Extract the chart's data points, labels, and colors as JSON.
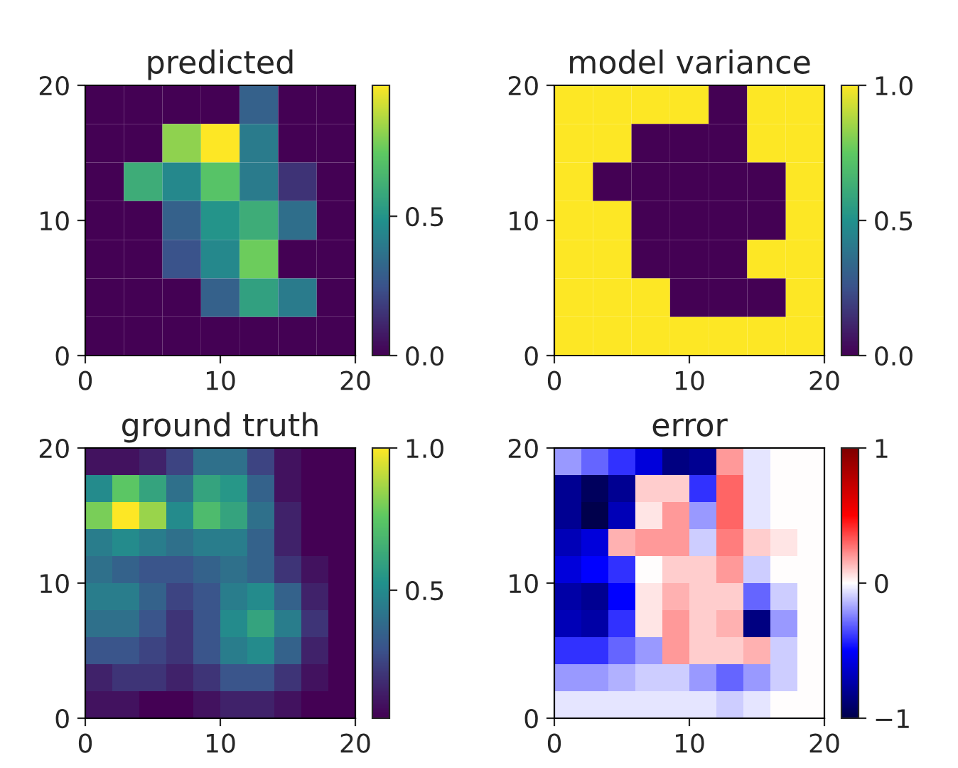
{
  "chart_data": [
    {
      "type": "heatmap",
      "title": "predicted",
      "xlim": [
        0,
        20
      ],
      "ylim": [
        0,
        20
      ],
      "xticks": [
        0,
        10,
        20
      ],
      "yticks": [
        0,
        10,
        20
      ],
      "clim": [
        0,
        0.97
      ],
      "cticks": [
        {
          "value": 0,
          "label": "0.0"
        },
        0.5
      ],
      "colors": [
        "#440154",
        "#3b528b",
        "#21918c",
        "#5ec962",
        "#fde725"
      ],
      "cells": [
        [
          0,
          0,
          0,
          0,
          0.3,
          0,
          0
        ],
        [
          0,
          0,
          0.8,
          0.97,
          0.4,
          0,
          0
        ],
        [
          0,
          0.6,
          0.45,
          0.7,
          0.4,
          0.15,
          0
        ],
        [
          0,
          0,
          0.3,
          0.5,
          0.6,
          0.35,
          0
        ],
        [
          0,
          0,
          0.25,
          0.45,
          0.75,
          0,
          0
        ],
        [
          0,
          0,
          0,
          0.3,
          0.55,
          0.4,
          0
        ],
        [
          0,
          0,
          0,
          0,
          0,
          0,
          0
        ]
      ]
    },
    {
      "type": "heatmap",
      "title": "model variance",
      "xlim": [
        0,
        20
      ],
      "ylim": [
        0,
        20
      ],
      "xticks": [
        0,
        10,
        20
      ],
      "yticks": [
        0,
        10,
        20
      ],
      "clim": [
        0,
        1
      ],
      "cticks": [
        {
          "value": 0,
          "label": "0.0"
        },
        0.5,
        {
          "value": 1,
          "label": "1.0"
        }
      ],
      "colors": [
        "#440154",
        "#3b528b",
        "#21918c",
        "#5ec962",
        "#fde725"
      ],
      "cells": [
        [
          1,
          1,
          1,
          1,
          0,
          1,
          1
        ],
        [
          1,
          1,
          0,
          0,
          0,
          1,
          1
        ],
        [
          1,
          0,
          0,
          0,
          0,
          0,
          1
        ],
        [
          1,
          1,
          0,
          0,
          0,
          0,
          1
        ],
        [
          1,
          1,
          0,
          0,
          0,
          1,
          1
        ],
        [
          1,
          1,
          1,
          0,
          0,
          0,
          1
        ],
        [
          1,
          1,
          1,
          1,
          1,
          1,
          1
        ]
      ]
    },
    {
      "type": "heatmap",
      "title": "ground truth",
      "xlim": [
        0,
        20
      ],
      "ylim": [
        0,
        20
      ],
      "xticks": [
        0,
        10,
        20
      ],
      "yticks": [
        0,
        10,
        20
      ],
      "clim": [
        0.05,
        1
      ],
      "cticks": [
        0.5,
        {
          "value": 1,
          "label": "1.0"
        }
      ],
      "colors": [
        "#440154",
        "#3b528b",
        "#21918c",
        "#5ec962",
        "#fde725"
      ],
      "cells": [
        [
          0.1,
          0.1,
          0.15,
          0.25,
          0.4,
          0.4,
          0.25,
          0.1,
          0.05,
          0.05
        ],
        [
          0.5,
          0.75,
          0.6,
          0.4,
          0.6,
          0.55,
          0.35,
          0.1,
          0.05,
          0.05
        ],
        [
          0.8,
          1.0,
          0.85,
          0.5,
          0.7,
          0.6,
          0.4,
          0.15,
          0.05,
          0.05
        ],
        [
          0.45,
          0.5,
          0.45,
          0.4,
          0.45,
          0.45,
          0.35,
          0.15,
          0.05,
          0.05
        ],
        [
          0.4,
          0.35,
          0.3,
          0.3,
          0.35,
          0.4,
          0.35,
          0.2,
          0.1,
          0.05
        ],
        [
          0.45,
          0.45,
          0.35,
          0.25,
          0.3,
          0.45,
          0.5,
          0.35,
          0.15,
          0.05
        ],
        [
          0.4,
          0.4,
          0.3,
          0.2,
          0.3,
          0.5,
          0.6,
          0.45,
          0.2,
          0.05
        ],
        [
          0.3,
          0.3,
          0.25,
          0.2,
          0.3,
          0.45,
          0.5,
          0.35,
          0.15,
          0.05
        ],
        [
          0.15,
          0.2,
          0.2,
          0.15,
          0.2,
          0.3,
          0.3,
          0.2,
          0.1,
          0.05
        ],
        [
          0.1,
          0.1,
          0.05,
          0.05,
          0.1,
          0.15,
          0.15,
          0.1,
          0.05,
          0.05
        ]
      ]
    },
    {
      "type": "heatmap",
      "title": "error",
      "xlim": [
        0,
        20
      ],
      "ylim": [
        0,
        20
      ],
      "xticks": [
        0,
        10,
        20
      ],
      "yticks": [
        0,
        10,
        20
      ],
      "clim": [
        -1,
        1
      ],
      "cticks": [
        {
          "value": -1,
          "label": "−1"
        },
        0,
        1
      ],
      "colors": [
        "#00004c",
        "#0000ff",
        "#ffffff",
        "#ff0000",
        "#7f0000"
      ],
      "cells": [
        [
          -0.2,
          -0.3,
          -0.4,
          -0.6,
          -0.85,
          -0.8,
          0.2,
          -0.05,
          0,
          0
        ],
        [
          -0.8,
          -0.95,
          -0.8,
          0.1,
          0.1,
          -0.4,
          0.3,
          -0.05,
          0,
          0
        ],
        [
          -0.8,
          -1.0,
          -0.7,
          0.05,
          0.2,
          -0.2,
          0.3,
          -0.05,
          0,
          0
        ],
        [
          -0.7,
          -0.6,
          0.15,
          0.2,
          0.2,
          -0.1,
          0.25,
          0.1,
          0.05,
          0
        ],
        [
          -0.6,
          -0.5,
          -0.4,
          0,
          0.1,
          0.1,
          0.2,
          -0.1,
          0,
          0
        ],
        [
          -0.75,
          -0.8,
          -0.5,
          0.05,
          0.15,
          0.1,
          0.1,
          -0.3,
          -0.1,
          0
        ],
        [
          -0.7,
          -0.75,
          -0.4,
          0.05,
          0.2,
          0.1,
          0.15,
          -0.85,
          -0.2,
          0
        ],
        [
          -0.4,
          -0.4,
          -0.3,
          -0.2,
          0.2,
          0.1,
          0.1,
          0.15,
          -0.1,
          0
        ],
        [
          -0.2,
          -0.2,
          -0.15,
          -0.1,
          -0.1,
          -0.2,
          -0.3,
          -0.2,
          -0.1,
          0
        ],
        [
          -0.05,
          -0.05,
          -0.05,
          -0.05,
          -0.05,
          -0.05,
          -0.1,
          -0.05,
          0,
          0
        ]
      ]
    }
  ]
}
